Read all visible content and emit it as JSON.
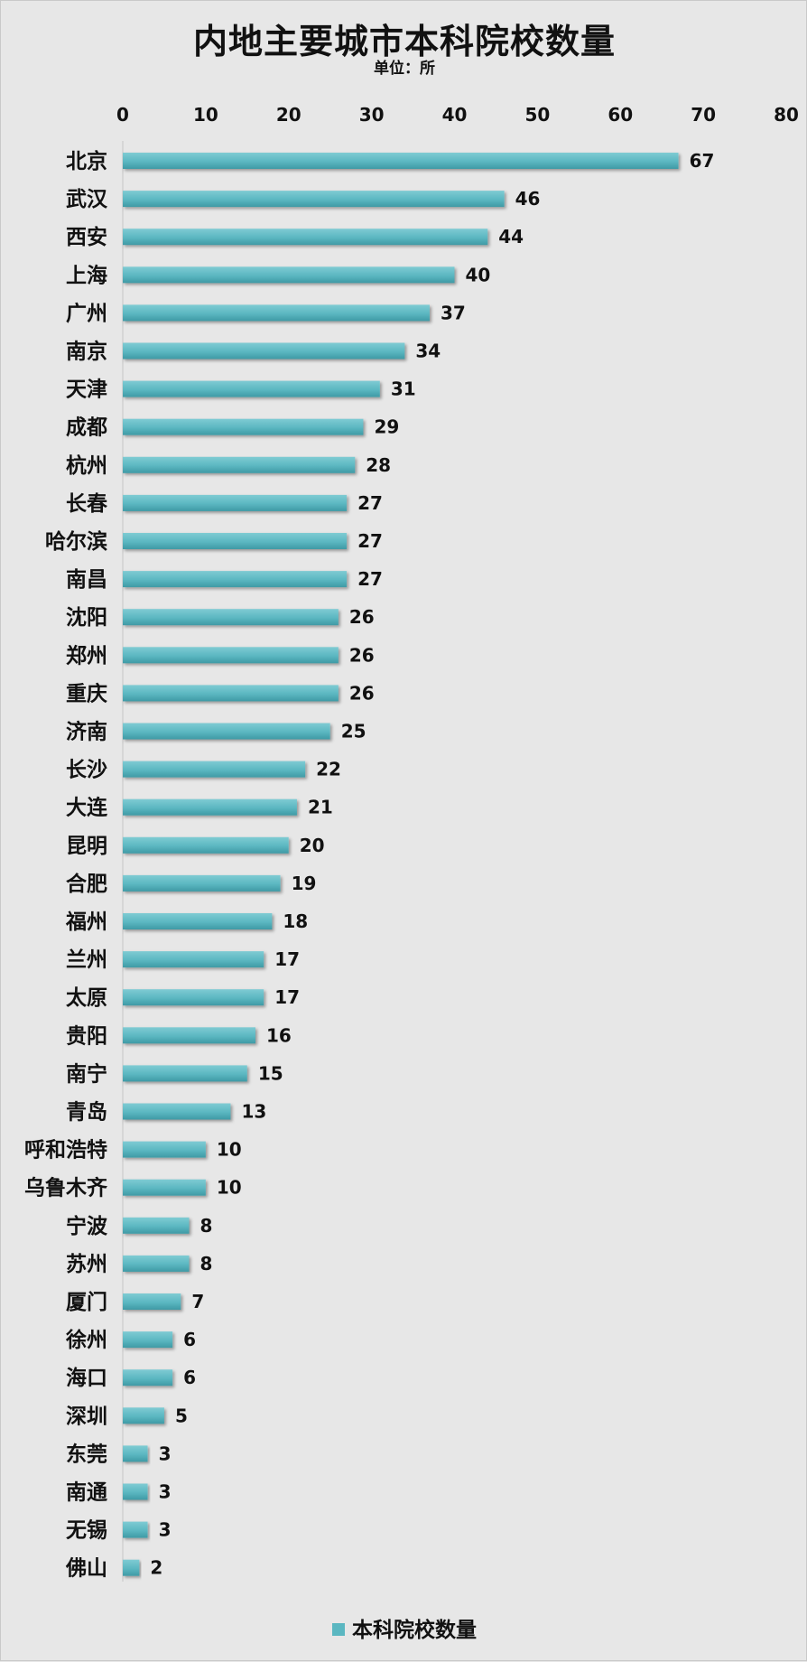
{
  "chart_data": {
    "type": "bar",
    "orientation": "horizontal",
    "title": "内地主要城市本科院校数量",
    "subtitle": "单位：所",
    "categories": [
      "北京",
      "武汉",
      "西安",
      "上海",
      "广州",
      "南京",
      "天津",
      "成都",
      "杭州",
      "长春",
      "哈尔滨",
      "南昌",
      "沈阳",
      "郑州",
      "重庆",
      "济南",
      "长沙",
      "大连",
      "昆明",
      "合肥",
      "福州",
      "兰州",
      "太原",
      "贵阳",
      "南宁",
      "青岛",
      "呼和浩特",
      "乌鲁木齐",
      "宁波",
      "苏州",
      "厦门",
      "徐州",
      "海口",
      "深圳",
      "东莞",
      "南通",
      "无锡",
      "佛山"
    ],
    "series": [
      {
        "name": "本科院校数量",
        "values": [
          67,
          46,
          44,
          40,
          37,
          34,
          31,
          29,
          28,
          27,
          27,
          27,
          26,
          26,
          26,
          25,
          22,
          21,
          20,
          19,
          18,
          17,
          17,
          16,
          15,
          13,
          10,
          10,
          8,
          8,
          7,
          6,
          6,
          5,
          3,
          3,
          3,
          2
        ]
      }
    ],
    "xlim": [
      0,
      80
    ],
    "xticks": [
      "0",
      "10",
      "20",
      "30",
      "40",
      "50",
      "60",
      "70",
      "80"
    ],
    "axis_position": "top",
    "grid": false,
    "legend_position": "bottom-center",
    "bar_color": "#5bb7c1"
  }
}
